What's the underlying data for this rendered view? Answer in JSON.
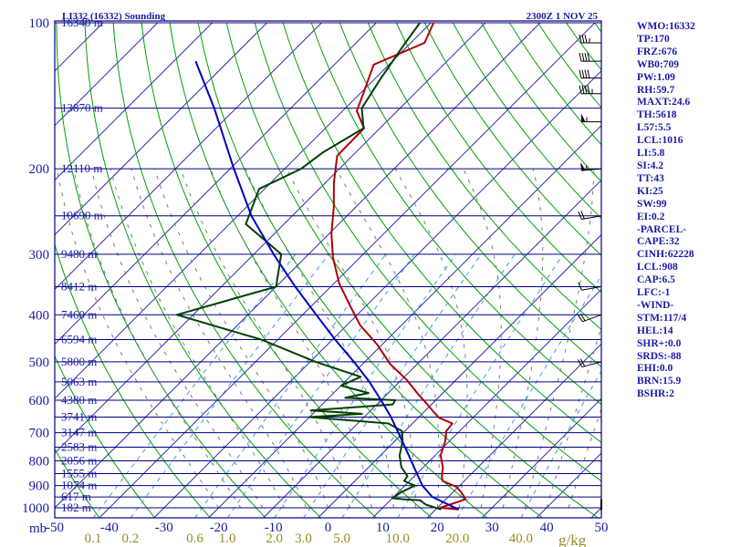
{
  "title_left": "LI332 (16332) Sounding",
  "title_right": "2300Z  1 NOV 25",
  "units": {
    "pressure": "mb",
    "mixing_ratio": "g/kg"
  },
  "stats": [
    "WMO:16332",
    "TP:170",
    "FRZ:676",
    "WB0:709",
    "PW:1.09",
    "RH:59.7",
    "MAXT:24.6",
    "TH:5618",
    "L57:5.5",
    "LCL:1016",
    "LI:5.8",
    "SI:4.2",
    "TT:43",
    "KI:25",
    "SW:99",
    "EI:0.2",
    "-PARCEL-",
    "CAPE:32",
    "CINH:62228",
    "LCL:908",
    "CAP:6.5",
    "LFC:-1",
    "-WIND-",
    "STM:117/4",
    "HEL:14",
    "SHR+:0.0",
    "SRDS:-88",
    "EHI:0.0",
    "BRN:15.9",
    "BSHR:2"
  ],
  "colors": {
    "frame": "#000080",
    "isobar": "#000080",
    "isotherm": "#2b2bb0",
    "dry_adiabat": "#00a000",
    "moist_adiabat": "#7a7a7a",
    "mixing_ratio": "#3aa0e0",
    "temperature": "#b00000",
    "dewpoint": "#004000",
    "parcel": "#0000c0",
    "label_blue": "#1a1aa6",
    "label_olive": "#9a8a20",
    "wind": "#000000"
  },
  "chart_data": {
    "type": "line",
    "title": "LI332 (16332) Sounding",
    "xlabel": "",
    "ylabel": "mb",
    "skew": true,
    "xlim": [
      -50,
      50
    ],
    "ylim": [
      1050,
      100
    ],
    "y_scale": "log",
    "pressure_ticks": [
      100,
      200,
      300,
      400,
      500,
      600,
      700,
      800,
      900,
      1000
    ],
    "temperature_ticks": [
      -50,
      -40,
      -30,
      -20,
      -10,
      0,
      10,
      20,
      30,
      40,
      50
    ],
    "mixing_ratio_ticks": [
      "0.1",
      "0.2",
      "0.6",
      "1.0",
      "2.0",
      "3.0",
      "5.0",
      "10.0",
      "20.0",
      "40.0"
    ],
    "height_levels": [
      {
        "p": 100,
        "label": "16340 m"
      },
      {
        "p": 150,
        "label": "13870 m"
      },
      {
        "p": 200,
        "label": "12110 m"
      },
      {
        "p": 250,
        "label": "10690 m"
      },
      {
        "p": 300,
        "label": "9480 m"
      },
      {
        "p": 350,
        "label": "8412 m"
      },
      {
        "p": 400,
        "label": "7460 m"
      },
      {
        "p": 450,
        "label": "6594 m"
      },
      {
        "p": 500,
        "label": "5800 m"
      },
      {
        "p": 550,
        "label": "5063 m"
      },
      {
        "p": 600,
        "label": "4380 m"
      },
      {
        "p": 650,
        "label": "3741 m"
      },
      {
        "p": 700,
        "label": "3147 m"
      },
      {
        "p": 750,
        "label": "2583 m"
      },
      {
        "p": 800,
        "label": "2056 m"
      },
      {
        "p": 850,
        "label": "1555 m"
      },
      {
        "p": 900,
        "label": "1074 m"
      },
      {
        "p": 950,
        "label": "617 m"
      },
      {
        "p": 1000,
        "label": "182 m"
      }
    ],
    "series": [
      {
        "key": "temperature",
        "p": [
          1008,
          1000,
          985,
          960,
          930,
          905,
          880,
          860,
          825,
          780,
          730,
          695,
          670,
          652,
          632,
          605,
          585,
          545,
          505,
          460,
          420,
          385,
          345,
          305,
          272,
          240,
          214,
          188,
          165,
          152,
          140,
          126,
          122,
          110,
          100
        ],
        "t": [
          24.2,
          20.5,
          21.7,
          23.6,
          21.6,
          19.6,
          16.0,
          15.0,
          13.6,
          11.0,
          9.3,
          7.6,
          7.3,
          3.8,
          1.5,
          -1.6,
          -4.1,
          -9.0,
          -15.0,
          -21.0,
          -27.6,
          -32.7,
          -39.0,
          -44.9,
          -49.6,
          -54.0,
          -58.4,
          -62.8,
          -62.9,
          -67.4,
          -69.4,
          -72.0,
          -72.8,
          -67.5,
          -69.5
        ]
      },
      {
        "key": "dewpoint",
        "p": [
          1008,
          985,
          965,
          960,
          955,
          930,
          900,
          880,
          860,
          825,
          780,
          730,
          695,
          670,
          650,
          640,
          630,
          612,
          600,
          593,
          580,
          560,
          537,
          500,
          450,
          400,
          350,
          300,
          260,
          220,
          200,
          185,
          165,
          150,
          130,
          110,
          100
        ],
        "t": [
          21.0,
          17.3,
          15.5,
          12.1,
          10.0,
          10.5,
          11.8,
          9.0,
          8.7,
          6.0,
          3.5,
          1.5,
          -0.5,
          -4.4,
          -20.0,
          -11.0,
          -21.0,
          -7.1,
          -7.4,
          -17.0,
          -13.6,
          -20.0,
          -18.0,
          -29.0,
          -43.0,
          -63.0,
          -50.0,
          -55.0,
          -67.0,
          -71.0,
          -67.0,
          -66.0,
          -63.0,
          -67.0,
          -69.0,
          -71.0,
          -72.0
        ]
      },
      {
        "key": "parcel",
        "p": [
          1008,
          950,
          900,
          850,
          800,
          750,
          700,
          650,
          600,
          550,
          500,
          450,
          400,
          350,
          300,
          250,
          200,
          150,
          120
        ],
        "t": [
          24.2,
          17.1,
          13.2,
          10.0,
          6.6,
          3.0,
          -0.9,
          -5.1,
          -10.0,
          -15.5,
          -22.0,
          -29.5,
          -37.5,
          -46.5,
          -56.4,
          -67.5,
          -79.3,
          -94.0,
          -106.0
        ]
      }
    ],
    "wind_barbs": [
      {
        "p": 1010,
        "dir": 0,
        "spd": 0
      },
      {
        "p": 1000,
        "dir": 0,
        "spd": 0
      },
      {
        "p": 975,
        "dir": 0,
        "spd": 0
      },
      {
        "p": 925,
        "dir": 0,
        "spd": 0
      },
      {
        "p": 900,
        "dir": 0,
        "spd": 0
      },
      {
        "p": 850,
        "dir": 0,
        "spd": 0
      },
      {
        "p": 800,
        "dir": 0,
        "spd": 0
      },
      {
        "p": 765,
        "dir": 0,
        "spd": 0
      },
      {
        "p": 700,
        "dir": 0,
        "spd": 0
      },
      {
        "p": 655,
        "dir": 0,
        "spd": 0
      },
      {
        "p": 600,
        "dir": 0,
        "spd": 0
      },
      {
        "p": 500,
        "dir": 255,
        "spd": 20
      },
      {
        "p": 400,
        "dir": 250,
        "spd": 20
      },
      {
        "p": 350,
        "dir": 260,
        "spd": 10
      },
      {
        "p": 250,
        "dir": 260,
        "spd": 20
      },
      {
        "p": 200,
        "dir": 265,
        "spd": 55
      },
      {
        "p": 160,
        "dir": 270,
        "spd": 55
      },
      {
        "p": 140,
        "dir": 270,
        "spd": 45
      },
      {
        "p": 130,
        "dir": 270,
        "spd": 40
      },
      {
        "p": 120,
        "dir": 270,
        "spd": 40
      },
      {
        "p": 110,
        "dir": 270,
        "spd": 35
      }
    ]
  }
}
